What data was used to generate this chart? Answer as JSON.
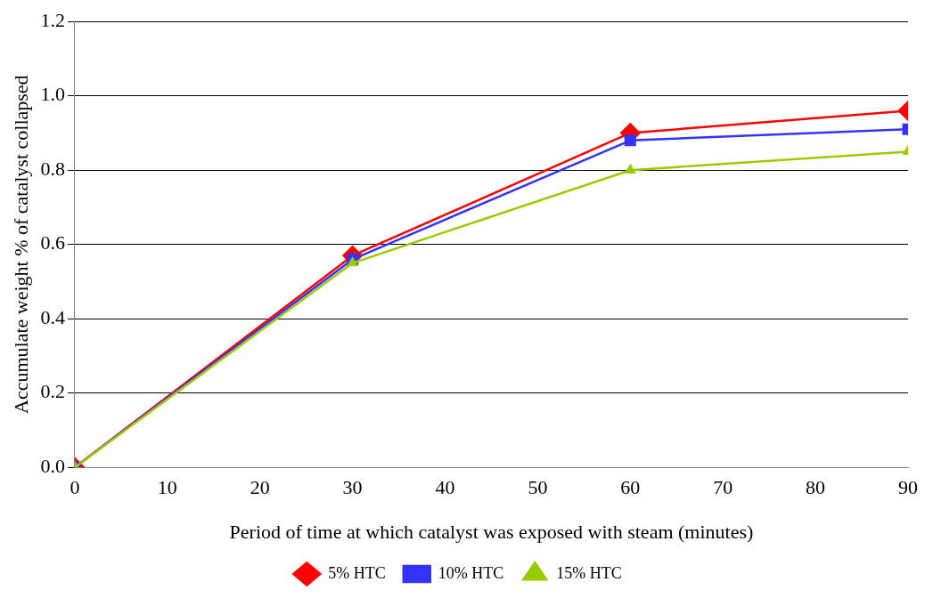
{
  "chart_data": {
    "type": "line",
    "xlabel": "Period of time at which catalyst was exposed with steam (minutes)",
    "ylabel": "Accumulate weight % of catalyst collapsed",
    "x": [
      0,
      30,
      60,
      90
    ],
    "xlim": [
      0,
      90
    ],
    "xticks": [
      0,
      10,
      20,
      30,
      40,
      50,
      60,
      70,
      80,
      90
    ],
    "ylim": [
      0,
      1.2
    ],
    "yticks": [
      {
        "value": 0,
        "label": "0.0"
      },
      {
        "value": 0.2,
        "label": "0.2"
      },
      {
        "value": 0.4,
        "label": "0.4"
      },
      {
        "value": 0.6,
        "label": "0.6"
      },
      {
        "value": 0.8,
        "label": "0.8"
      },
      {
        "value": 1,
        "label": "1.0"
      },
      {
        "value": 1.2,
        "label": "1.2"
      }
    ],
    "grid": "y",
    "legend": "bottom",
    "series": [
      {
        "name": "5% HTC",
        "color": "#ff0000",
        "marker": "diamond",
        "values": [
          0,
          0.57,
          0.9,
          0.96
        ]
      },
      {
        "name": "10% HTC",
        "color": "#3333ff",
        "marker": "square",
        "values": [
          0,
          0.56,
          0.88,
          0.91
        ]
      },
      {
        "name": "15% HTC",
        "color": "#99cc00",
        "marker": "triangle",
        "values": [
          0,
          0.55,
          0.8,
          0.85
        ]
      }
    ]
  }
}
